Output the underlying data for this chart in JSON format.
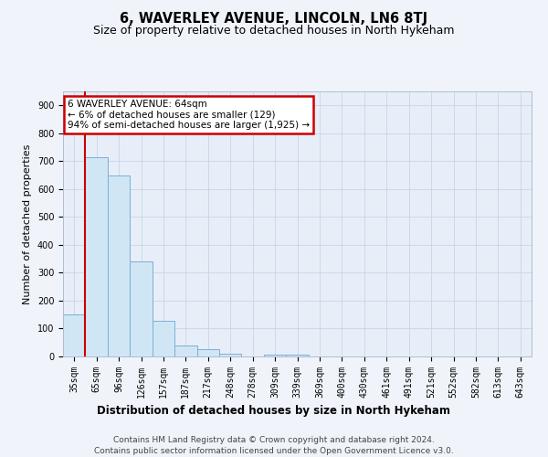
{
  "title": "6, WAVERLEY AVENUE, LINCOLN, LN6 8TJ",
  "subtitle": "Size of property relative to detached houses in North Hykeham",
  "xlabel": "Distribution of detached houses by size in North Hykeham",
  "ylabel": "Number of detached properties",
  "categories": [
    "35sqm",
    "65sqm",
    "96sqm",
    "126sqm",
    "157sqm",
    "187sqm",
    "217sqm",
    "248sqm",
    "278sqm",
    "309sqm",
    "339sqm",
    "369sqm",
    "400sqm",
    "430sqm",
    "461sqm",
    "491sqm",
    "521sqm",
    "552sqm",
    "582sqm",
    "613sqm",
    "643sqm"
  ],
  "values": [
    150,
    715,
    650,
    340,
    128,
    40,
    27,
    10,
    0,
    8,
    8,
    0,
    0,
    0,
    0,
    0,
    0,
    0,
    0,
    0,
    0
  ],
  "bar_color": "#d0e6f5",
  "bar_edge_color": "#7ab0d4",
  "vline_color": "#cc0000",
  "vline_x_index": 1,
  "annotation_text": "6 WAVERLEY AVENUE: 64sqm\n← 6% of detached houses are smaller (129)\n94% of semi-detached houses are larger (1,925) →",
  "annotation_box_edgecolor": "#cc0000",
  "ylim": [
    0,
    950
  ],
  "yticks": [
    0,
    100,
    200,
    300,
    400,
    500,
    600,
    700,
    800,
    900
  ],
  "grid_color": "#c8d4e8",
  "plot_bg_color": "#e8eef8",
  "fig_bg_color": "#f0f4fa",
  "footer_line1": "Contains HM Land Registry data © Crown copyright and database right 2024.",
  "footer_line2": "Contains public sector information licensed under the Open Government Licence v3.0.",
  "title_fontsize": 10.5,
  "subtitle_fontsize": 9,
  "xlabel_fontsize": 8.5,
  "ylabel_fontsize": 8,
  "tick_fontsize": 7,
  "annotation_fontsize": 7.5,
  "footer_fontsize": 6.5
}
